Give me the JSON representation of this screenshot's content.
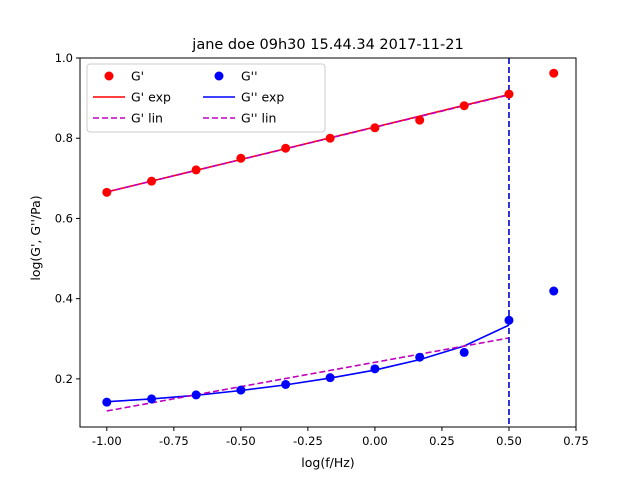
{
  "chart_data": {
    "type": "scatter",
    "title": "jane doe 09h30 15.44.34 2017-11-21",
    "xlabel": "log(f/Hz)",
    "ylabel": "log(G', G''/Pa)",
    "xlim": [
      -1.1,
      0.75
    ],
    "ylim": [
      0.08,
      1.0
    ],
    "xticks": [
      "-1.00",
      "-0.75",
      "-0.50",
      "-0.25",
      "0.00",
      "0.25",
      "0.50",
      "0.75"
    ],
    "xtick_values": [
      -1.0,
      -0.75,
      -0.5,
      -0.25,
      0.0,
      0.25,
      0.5,
      0.75
    ],
    "yticks": [
      "0.2",
      "0.4",
      "0.6",
      "0.8",
      "1.0"
    ],
    "ytick_values": [
      0.2,
      0.4,
      0.6,
      0.8,
      1.0
    ],
    "legend_position": "top-left",
    "vline_x": 0.5,
    "vline_color": "#0000cc",
    "series": [
      {
        "name": "G'",
        "kind": "points",
        "color": "#ff0000",
        "x": [
          -1.0,
          -0.833,
          -0.667,
          -0.5,
          -0.333,
          -0.167,
          0.0,
          0.167,
          0.333,
          0.5,
          0.667
        ],
        "y": [
          0.665,
          0.693,
          0.721,
          0.75,
          0.775,
          0.8,
          0.826,
          0.845,
          0.881,
          0.91,
          0.962
        ]
      },
      {
        "name": "G''",
        "kind": "points",
        "color": "#0000ff",
        "x": [
          -1.0,
          -0.833,
          -0.667,
          -0.5,
          -0.333,
          -0.167,
          0.0,
          0.167,
          0.333,
          0.5,
          0.667
        ],
        "y": [
          0.142,
          0.15,
          0.16,
          0.172,
          0.186,
          0.203,
          0.225,
          0.254,
          0.266,
          0.346,
          0.419
        ]
      },
      {
        "name": "G' exp",
        "kind": "line",
        "color": "#ff0000",
        "x": [
          -1.0,
          -0.833,
          -0.667,
          -0.5,
          -0.333,
          -0.167,
          0.0,
          0.167,
          0.333,
          0.5
        ],
        "y": [
          0.666,
          0.693,
          0.72,
          0.747,
          0.774,
          0.801,
          0.828,
          0.855,
          0.882,
          0.909
        ]
      },
      {
        "name": "G'' exp",
        "kind": "line",
        "color": "#0000ff",
        "x": [
          -1.0,
          -0.833,
          -0.667,
          -0.5,
          -0.333,
          -0.167,
          0.0,
          0.167,
          0.333,
          0.5
        ],
        "y": [
          0.143,
          0.15,
          0.159,
          0.171,
          0.185,
          0.202,
          0.222,
          0.248,
          0.282,
          0.334
        ]
      },
      {
        "name": "G' lin",
        "kind": "dashed",
        "color": "#bf00bf",
        "x": [
          -1.0,
          0.5
        ],
        "y": [
          0.666,
          0.908
        ]
      },
      {
        "name": "G'' lin",
        "kind": "dashed",
        "color": "#bf00bf",
        "x": [
          -1.0,
          0.5
        ],
        "y": [
          0.12,
          0.302
        ]
      }
    ]
  }
}
